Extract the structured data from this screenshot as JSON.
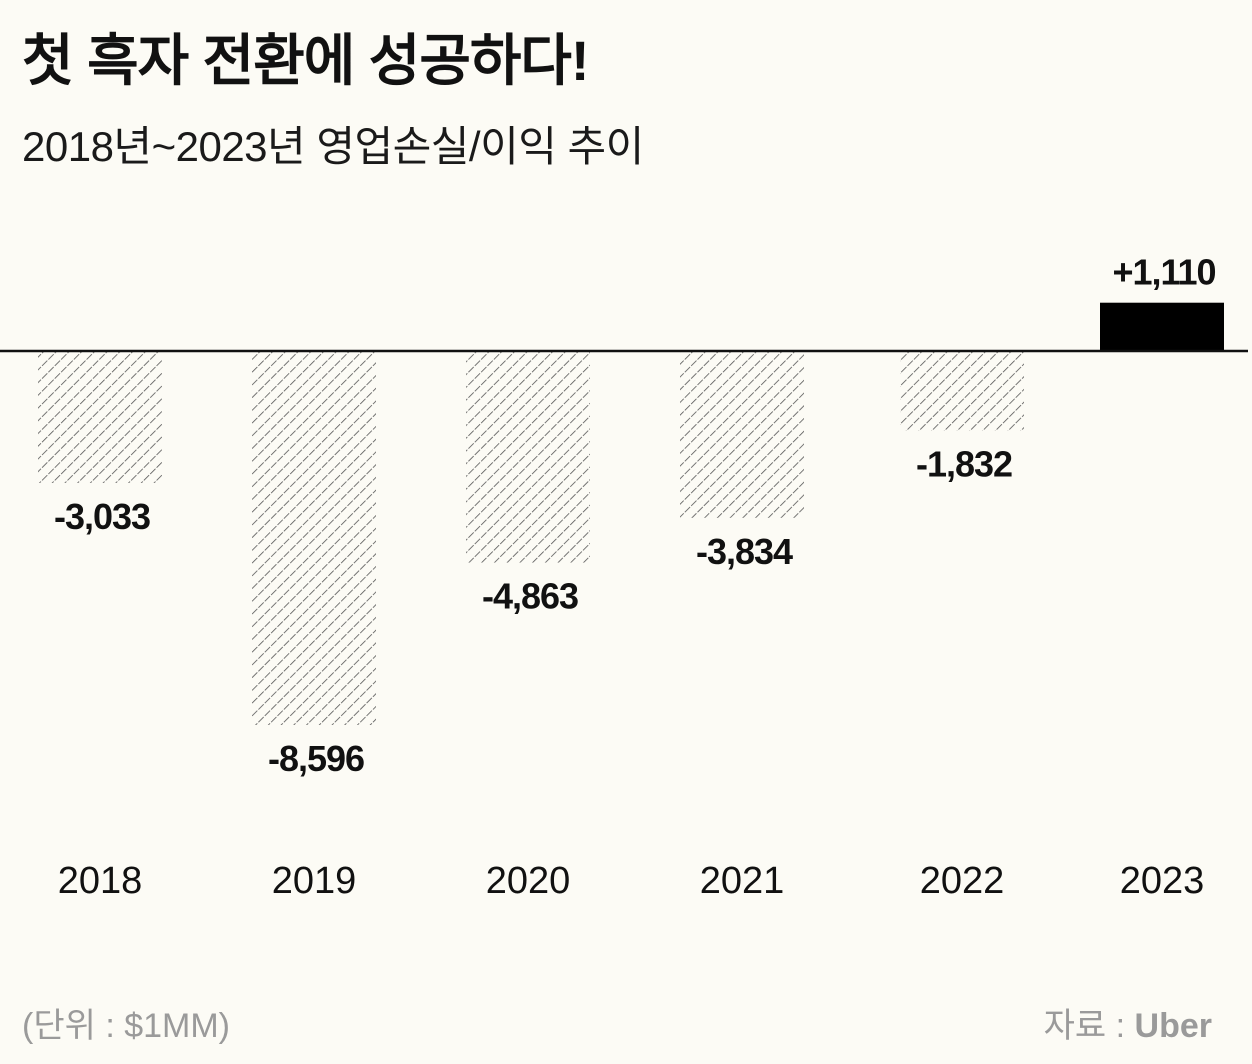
{
  "header": {
    "title": "첫 흑자 전환에 성공하다!",
    "subtitle": "2018년~2023년 영업손실/이익 추이"
  },
  "footer": {
    "unit": "(단위 : $1MM)",
    "source_label": "자료 : ",
    "source_name": "Uber"
  },
  "colors": {
    "background": "#fcfbf5",
    "positive_bar": "#000000",
    "hatch": "#555555",
    "text": "#111111",
    "muted": "#9a9a9a"
  },
  "chart_data": {
    "type": "bar",
    "title": "첫 흑자 전환에 성공하다!",
    "subtitle": "2018년~2023년 영업손실/이익 추이",
    "xlabel": "",
    "ylabel": "",
    "unit": "$1MM",
    "categories": [
      "2018",
      "2019",
      "2020",
      "2021",
      "2022",
      "2023"
    ],
    "values": [
      -3033,
      -8596,
      -4863,
      -3834,
      -1832,
      1110
    ],
    "data_labels": [
      "-3,033",
      "-8,596",
      "-4,863",
      "-3,834",
      "-1,832",
      "+1,110"
    ],
    "grid": false,
    "legend": "none"
  }
}
